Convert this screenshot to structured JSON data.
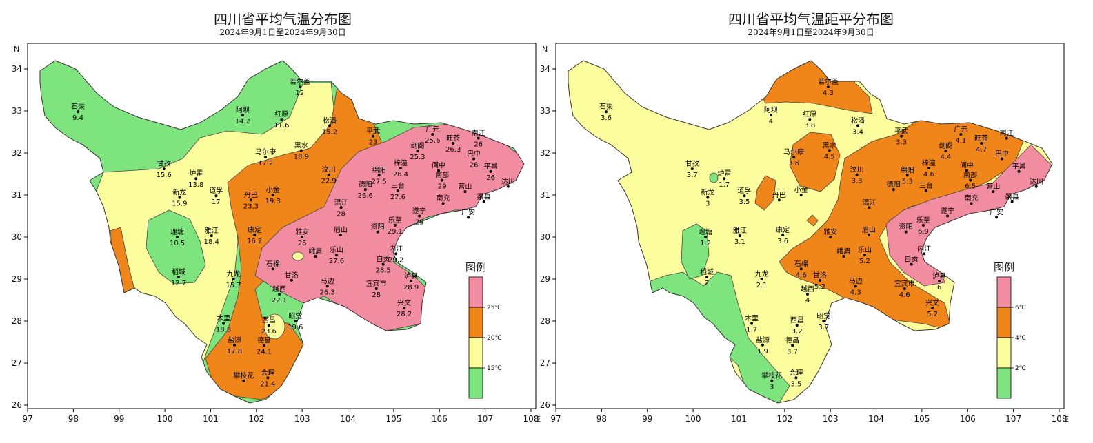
{
  "maps": [
    {
      "title": "四川省平均气温分布图",
      "subtitle": "2024年9月1日至2024年9月30日",
      "legend": {
        "title": "图例",
        "thresholds": [
          "25℃",
          "20℃",
          "15℃"
        ],
        "colors": [
          "#f28ca0",
          "#f08519",
          "#fcfd9d",
          "#7ee47e"
        ]
      },
      "stations": [
        {
          "name": "若尔盖",
          "value": "12",
          "lon": 102.95,
          "lat": 33.57
        },
        {
          "name": "石渠",
          "value": "9.4",
          "lon": 98.1,
          "lat": 32.98
        },
        {
          "name": "阿坝",
          "value": "14.2",
          "lon": 101.7,
          "lat": 32.9
        },
        {
          "name": "红原",
          "value": "11.6",
          "lon": 102.55,
          "lat": 32.8
        },
        {
          "name": "松潘",
          "value": "15.2",
          "lon": 103.6,
          "lat": 32.65
        },
        {
          "name": "平武",
          "value": "23",
          "lon": 104.55,
          "lat": 32.4
        },
        {
          "name": "广元",
          "value": "25.6",
          "lon": 105.85,
          "lat": 32.44
        },
        {
          "name": "旺苍",
          "value": "26.3",
          "lon": 106.3,
          "lat": 32.23
        },
        {
          "name": "南江",
          "value": "26",
          "lon": 106.85,
          "lat": 32.35
        },
        {
          "name": "剑阁",
          "value": "25.3",
          "lon": 105.52,
          "lat": 32.05
        },
        {
          "name": "巴中",
          "value": "26",
          "lon": 106.75,
          "lat": 31.86
        },
        {
          "name": "平昌",
          "value": "26",
          "lon": 107.12,
          "lat": 31.56
        },
        {
          "name": "达川",
          "value": "",
          "lon": 107.5,
          "lat": 31.2
        },
        {
          "name": "马尔康",
          "value": "17.2",
          "lon": 102.2,
          "lat": 31.9
        },
        {
          "name": "黑水",
          "value": "18.9",
          "lon": 102.98,
          "lat": 32.06
        },
        {
          "name": "甘孜",
          "value": "15.6",
          "lon": 99.98,
          "lat": 31.62
        },
        {
          "name": "炉霍",
          "value": "13.8",
          "lon": 100.68,
          "lat": 31.39
        },
        {
          "name": "汶川",
          "value": "22.9",
          "lon": 103.58,
          "lat": 31.48
        },
        {
          "name": "绵阳",
          "value": "27.5",
          "lon": 104.68,
          "lat": 31.47
        },
        {
          "name": "梓潼",
          "value": "26.4",
          "lon": 105.15,
          "lat": 31.64
        },
        {
          "name": "南部",
          "value": "29",
          "lon": 106.06,
          "lat": 31.35
        },
        {
          "name": "新龙",
          "value": "15.9",
          "lon": 100.32,
          "lat": 30.94
        },
        {
          "name": "道孚",
          "value": "17",
          "lon": 101.12,
          "lat": 30.98
        },
        {
          "name": "小金",
          "value": "19.3",
          "lon": 102.36,
          "lat": 31.0
        },
        {
          "name": "德阳",
          "value": "26.6",
          "lon": 104.38,
          "lat": 31.13
        },
        {
          "name": "三台",
          "value": "27.6",
          "lon": 105.09,
          "lat": 31.1
        },
        {
          "name": "阆中",
          "value": "",
          "lon": 105.98,
          "lat": 31.58
        },
        {
          "name": "营山",
          "value": "",
          "lon": 106.56,
          "lat": 31.08
        },
        {
          "name": "南充",
          "value": "",
          "lon": 106.08,
          "lat": 30.8
        },
        {
          "name": "渠县",
          "value": "",
          "lon": 106.97,
          "lat": 30.84
        },
        {
          "name": "广安",
          "value": "",
          "lon": 106.63,
          "lat": 30.47
        },
        {
          "name": "丹巴",
          "value": "23.3",
          "lon": 101.88,
          "lat": 30.88
        },
        {
          "name": "温江",
          "value": "28",
          "lon": 103.85,
          "lat": 30.7
        },
        {
          "name": "遂宁",
          "value": "29",
          "lon": 105.56,
          "lat": 30.5
        },
        {
          "name": "理塘",
          "value": "10.5",
          "lon": 100.27,
          "lat": 30.0
        },
        {
          "name": "雅江",
          "value": "18.4",
          "lon": 101.02,
          "lat": 30.03
        },
        {
          "name": "康定",
          "value": "16.2",
          "lon": 101.96,
          "lat": 30.05
        },
        {
          "name": "乐至",
          "value": "29.1",
          "lon": 105.03,
          "lat": 30.28
        },
        {
          "name": "雅安",
          "value": "26",
          "lon": 103.0,
          "lat": 30.0
        },
        {
          "name": "眉山",
          "value": "",
          "lon": 103.84,
          "lat": 30.05
        },
        {
          "name": "资阳",
          "value": "",
          "lon": 104.65,
          "lat": 30.12
        },
        {
          "name": "内江",
          "value": "29.2",
          "lon": 105.05,
          "lat": 29.6
        },
        {
          "name": "乐山",
          "value": "27.6",
          "lon": 103.75,
          "lat": 29.57
        },
        {
          "name": "自贡",
          "value": "28.5",
          "lon": 104.77,
          "lat": 29.35
        },
        {
          "name": "峨眉",
          "value": "",
          "lon": 103.29,
          "lat": 29.54
        },
        {
          "name": "稻城",
          "value": "12.7",
          "lon": 100.3,
          "lat": 29.05
        },
        {
          "name": "九龙",
          "value": "15.7",
          "lon": 101.5,
          "lat": 29.0
        },
        {
          "name": "石棉",
          "value": "",
          "lon": 102.36,
          "lat": 29.24
        },
        {
          "name": "甘洛",
          "value": "",
          "lon": 102.77,
          "lat": 28.97
        },
        {
          "name": "马边",
          "value": "26.3",
          "lon": 103.55,
          "lat": 28.83
        },
        {
          "name": "宜宾市",
          "value": "28",
          "lon": 104.62,
          "lat": 28.77
        },
        {
          "name": "泸县",
          "value": "28.9",
          "lon": 105.38,
          "lat": 28.95
        },
        {
          "name": "越西",
          "value": "22.1",
          "lon": 102.5,
          "lat": 28.64
        },
        {
          "name": "木里",
          "value": "18.8",
          "lon": 101.28,
          "lat": 27.94
        },
        {
          "name": "昭觉",
          "value": "19.6",
          "lon": 102.85,
          "lat": 28.0
        },
        {
          "name": "西昌",
          "value": "23.6",
          "lon": 102.27,
          "lat": 27.9
        },
        {
          "name": "兴文",
          "value": "28.2",
          "lon": 105.23,
          "lat": 28.31
        },
        {
          "name": "德昌",
          "value": "24.1",
          "lon": 102.17,
          "lat": 27.42
        },
        {
          "name": "盐源",
          "value": "17.8",
          "lon": 101.52,
          "lat": 27.43
        },
        {
          "name": "会理",
          "value": "21.4",
          "lon": 102.25,
          "lat": 26.65
        },
        {
          "name": "攀枝花",
          "value": "",
          "lon": 101.72,
          "lat": 26.58
        }
      ]
    },
    {
      "title": "四川省平均气温距平分布图",
      "subtitle": "2024年9月1日至2024年9月30日",
      "legend": {
        "title": "图例",
        "thresholds": [
          "6℃",
          "4℃",
          "2℃"
        ],
        "colors": [
          "#f28ca0",
          "#f08519",
          "#fcfd9d",
          "#7ee47e"
        ]
      },
      "stations": [
        {
          "name": "若尔盖",
          "value": "4.3",
          "lon": 102.95,
          "lat": 33.57
        },
        {
          "name": "石渠",
          "value": "3.6",
          "lon": 98.1,
          "lat": 32.98
        },
        {
          "name": "阿坝",
          "value": "4",
          "lon": 101.7,
          "lat": 32.9
        },
        {
          "name": "红原",
          "value": "3.8",
          "lon": 102.55,
          "lat": 32.8
        },
        {
          "name": "松潘",
          "value": "3.4",
          "lon": 103.6,
          "lat": 32.65
        },
        {
          "name": "平武",
          "value": "3.3",
          "lon": 104.55,
          "lat": 32.4
        },
        {
          "name": "广元",
          "value": "4.1",
          "lon": 105.85,
          "lat": 32.44
        },
        {
          "name": "旺苍",
          "value": "4.7",
          "lon": 106.3,
          "lat": 32.23
        },
        {
          "name": "南江",
          "value": "",
          "lon": 106.85,
          "lat": 32.35
        },
        {
          "name": "剑阁",
          "value": "4.4",
          "lon": 105.52,
          "lat": 32.05
        },
        {
          "name": "巴中",
          "value": "",
          "lon": 106.75,
          "lat": 31.86
        },
        {
          "name": "平昌",
          "value": "",
          "lon": 107.12,
          "lat": 31.56
        },
        {
          "name": "达川",
          "value": "",
          "lon": 107.5,
          "lat": 31.2
        },
        {
          "name": "马尔康",
          "value": "3.6",
          "lon": 102.2,
          "lat": 31.9
        },
        {
          "name": "黑水",
          "value": "4.5",
          "lon": 102.98,
          "lat": 32.06
        },
        {
          "name": "甘孜",
          "value": "3.7",
          "lon": 99.98,
          "lat": 31.62
        },
        {
          "name": "炉霍",
          "value": "1.7",
          "lon": 100.68,
          "lat": 31.39
        },
        {
          "name": "汶川",
          "value": "3.3",
          "lon": 103.58,
          "lat": 31.48
        },
        {
          "name": "绵阳",
          "value": "5.3",
          "lon": 104.68,
          "lat": 31.47
        },
        {
          "name": "梓潼",
          "value": "4.6",
          "lon": 105.15,
          "lat": 31.64
        },
        {
          "name": "南部",
          "value": "6.5",
          "lon": 106.06,
          "lat": 31.35
        },
        {
          "name": "新龙",
          "value": "3",
          "lon": 100.32,
          "lat": 30.94
        },
        {
          "name": "道孚",
          "value": "3.5",
          "lon": 101.12,
          "lat": 30.98
        },
        {
          "name": "小金",
          "value": "",
          "lon": 102.36,
          "lat": 31.0
        },
        {
          "name": "德阳",
          "value": "",
          "lon": 104.38,
          "lat": 31.13
        },
        {
          "name": "三台",
          "value": "",
          "lon": 105.09,
          "lat": 31.1
        },
        {
          "name": "阆中",
          "value": "",
          "lon": 105.98,
          "lat": 31.58
        },
        {
          "name": "营山",
          "value": "",
          "lon": 106.56,
          "lat": 31.08
        },
        {
          "name": "南充",
          "value": "",
          "lon": 106.08,
          "lat": 30.8
        },
        {
          "name": "渠县",
          "value": "",
          "lon": 106.97,
          "lat": 30.84
        },
        {
          "name": "广安",
          "value": "",
          "lon": 106.63,
          "lat": 30.47
        },
        {
          "name": "丹巴",
          "value": "",
          "lon": 101.88,
          "lat": 30.88
        },
        {
          "name": "温江",
          "value": "",
          "lon": 103.85,
          "lat": 30.7
        },
        {
          "name": "遂宁",
          "value": "",
          "lon": 105.56,
          "lat": 30.5
        },
        {
          "name": "理塘",
          "value": "1.2",
          "lon": 100.27,
          "lat": 30.0
        },
        {
          "name": "雅江",
          "value": "3.1",
          "lon": 101.02,
          "lat": 30.03
        },
        {
          "name": "康定",
          "value": "3.6",
          "lon": 101.96,
          "lat": 30.05
        },
        {
          "name": "乐至",
          "value": "6.9",
          "lon": 105.03,
          "lat": 30.28
        },
        {
          "name": "雅安",
          "value": "",
          "lon": 103.0,
          "lat": 30.0
        },
        {
          "name": "眉山",
          "value": "",
          "lon": 103.84,
          "lat": 30.05
        },
        {
          "name": "资阳",
          "value": "",
          "lon": 104.65,
          "lat": 30.12
        },
        {
          "name": "内江",
          "value": "",
          "lon": 105.05,
          "lat": 29.6
        },
        {
          "name": "乐山",
          "value": "5.2",
          "lon": 103.75,
          "lat": 29.57
        },
        {
          "name": "自贡",
          "value": "",
          "lon": 104.77,
          "lat": 29.35
        },
        {
          "name": "峨眉",
          "value": "",
          "lon": 103.29,
          "lat": 29.54
        },
        {
          "name": "稻城",
          "value": "2",
          "lon": 100.3,
          "lat": 29.05
        },
        {
          "name": "九龙",
          "value": "2.1",
          "lon": 101.5,
          "lat": 29.0
        },
        {
          "name": "石棉",
          "value": "4.6",
          "lon": 102.36,
          "lat": 29.24
        },
        {
          "name": "甘洛",
          "value": "5.2",
          "lon": 102.77,
          "lat": 28.97
        },
        {
          "name": "马边",
          "value": "4.3",
          "lon": 103.55,
          "lat": 28.83
        },
        {
          "name": "宜宾市",
          "value": "4.6",
          "lon": 104.62,
          "lat": 28.77
        },
        {
          "name": "泸县",
          "value": "6",
          "lon": 105.38,
          "lat": 28.95
        },
        {
          "name": "越西",
          "value": "4",
          "lon": 102.5,
          "lat": 28.64
        },
        {
          "name": "木里",
          "value": "1.7",
          "lon": 101.28,
          "lat": 27.94
        },
        {
          "name": "昭觉",
          "value": "3.7",
          "lon": 102.85,
          "lat": 28.0
        },
        {
          "name": "西昌",
          "value": "3.2",
          "lon": 102.27,
          "lat": 27.9
        },
        {
          "name": "兴文",
          "value": "5.2",
          "lon": 105.23,
          "lat": 28.31
        },
        {
          "name": "德昌",
          "value": "3.7",
          "lon": 102.17,
          "lat": 27.42
        },
        {
          "name": "盐源",
          "value": "1.9",
          "lon": 101.52,
          "lat": 27.43
        },
        {
          "name": "会理",
          "value": "3.5",
          "lon": 102.25,
          "lat": 26.65
        },
        {
          "name": "攀枝花",
          "value": "3",
          "lon": 101.72,
          "lat": 26.58
        }
      ]
    }
  ],
  "axes": {
    "x_ticks": [
      "97",
      "98",
      "99",
      "100",
      "101",
      "102",
      "103",
      "104",
      "105",
      "106",
      "107",
      "108"
    ],
    "y_ticks": [
      "34",
      "33",
      "32",
      "31",
      "30",
      "29",
      "28",
      "27",
      "26"
    ],
    "x_letter": "E",
    "y_letter": "N"
  }
}
